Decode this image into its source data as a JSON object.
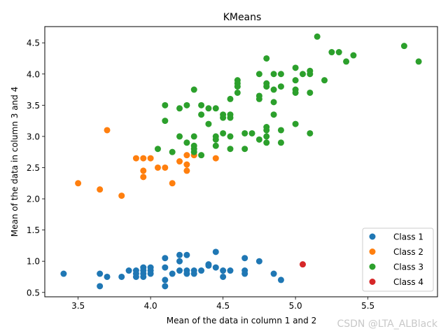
{
  "chart_data": {
    "type": "scatter",
    "title": "KMeans",
    "xlabel": "Mean of the data in column 1 and 2",
    "ylabel": "Mean of the data in column 3 and 4",
    "xlim": [
      3.27,
      5.98
    ],
    "ylim": [
      0.43,
      4.76
    ],
    "xticks": [
      3.5,
      4.0,
      4.5,
      5.0,
      5.5
    ],
    "xtick_labels": [
      "3.5",
      "4.0",
      "4.5",
      "5.0",
      "5.5"
    ],
    "yticks": [
      0.5,
      1.0,
      1.5,
      2.0,
      2.5,
      3.0,
      3.5,
      4.0,
      4.5
    ],
    "ytick_labels": [
      "0.5",
      "1.0",
      "1.5",
      "2.0",
      "2.5",
      "3.0",
      "3.5",
      "4.0",
      "4.5"
    ],
    "grid": false,
    "legend_position": "lower-right",
    "series": [
      {
        "name": "Class 1",
        "color": "#1f77b4",
        "points": [
          [
            3.4,
            0.8
          ],
          [
            3.65,
            0.8
          ],
          [
            3.65,
            0.6
          ],
          [
            3.7,
            0.75
          ],
          [
            3.8,
            0.75
          ],
          [
            3.85,
            0.85
          ],
          [
            3.9,
            0.85
          ],
          [
            3.9,
            0.8
          ],
          [
            3.9,
            0.75
          ],
          [
            3.95,
            0.9
          ],
          [
            3.95,
            0.85
          ],
          [
            3.95,
            0.8
          ],
          [
            3.95,
            0.75
          ],
          [
            4.0,
            0.9
          ],
          [
            4.0,
            0.85
          ],
          [
            4.0,
            0.8
          ],
          [
            4.1,
            1.05
          ],
          [
            4.1,
            0.9
          ],
          [
            4.1,
            0.7
          ],
          [
            4.1,
            0.6
          ],
          [
            4.15,
            0.8
          ],
          [
            4.2,
            1.1
          ],
          [
            4.2,
            1.0
          ],
          [
            4.2,
            0.85
          ],
          [
            4.25,
            1.1
          ],
          [
            4.25,
            0.85
          ],
          [
            4.25,
            0.8
          ],
          [
            4.3,
            0.85
          ],
          [
            4.3,
            0.8
          ],
          [
            4.35,
            0.85
          ],
          [
            4.4,
            0.95
          ],
          [
            4.4,
            0.93
          ],
          [
            4.45,
            1.15
          ],
          [
            4.45,
            0.9
          ],
          [
            4.5,
            0.85
          ],
          [
            4.5,
            0.75
          ],
          [
            4.55,
            0.85
          ],
          [
            4.65,
            1.05
          ],
          [
            4.65,
            0.85
          ],
          [
            4.65,
            0.8
          ],
          [
            4.75,
            1.0
          ],
          [
            4.85,
            0.8
          ],
          [
            4.9,
            0.7
          ]
        ]
      },
      {
        "name": "Class 2",
        "color": "#ff7f0e",
        "points": [
          [
            3.5,
            2.25
          ],
          [
            3.65,
            2.15
          ],
          [
            3.7,
            3.1
          ],
          [
            3.8,
            2.05
          ],
          [
            3.9,
            2.65
          ],
          [
            3.95,
            2.65
          ],
          [
            3.95,
            2.45
          ],
          [
            3.95,
            2.35
          ],
          [
            4.0,
            2.65
          ],
          [
            4.05,
            2.5
          ],
          [
            4.1,
            2.5
          ],
          [
            4.15,
            2.25
          ],
          [
            4.2,
            2.6
          ],
          [
            4.25,
            2.7
          ],
          [
            4.25,
            2.55
          ],
          [
            4.25,
            2.45
          ],
          [
            4.3,
            2.7
          ],
          [
            4.45,
            2.65
          ]
        ]
      },
      {
        "name": "Class 3",
        "color": "#2ca02c",
        "points": [
          [
            4.05,
            2.8
          ],
          [
            4.1,
            3.5
          ],
          [
            4.1,
            3.25
          ],
          [
            4.15,
            2.75
          ],
          [
            4.2,
            3.45
          ],
          [
            4.2,
            3.0
          ],
          [
            4.25,
            3.5
          ],
          [
            4.25,
            2.9
          ],
          [
            4.3,
            3.75
          ],
          [
            4.3,
            3.0
          ],
          [
            4.3,
            2.85
          ],
          [
            4.3,
            2.8
          ],
          [
            4.3,
            2.75
          ],
          [
            4.35,
            3.5
          ],
          [
            4.35,
            3.35
          ],
          [
            4.35,
            2.7
          ],
          [
            4.4,
            3.45
          ],
          [
            4.4,
            3.2
          ],
          [
            4.45,
            3.45
          ],
          [
            4.45,
            3.0
          ],
          [
            4.45,
            2.95
          ],
          [
            4.45,
            2.85
          ],
          [
            4.5,
            3.35
          ],
          [
            4.5,
            3.3
          ],
          [
            4.5,
            3.05
          ],
          [
            4.55,
            3.6
          ],
          [
            4.55,
            3.35
          ],
          [
            4.55,
            3.3
          ],
          [
            4.55,
            3.0
          ],
          [
            4.55,
            2.8
          ],
          [
            4.6,
            3.9
          ],
          [
            4.6,
            3.85
          ],
          [
            4.6,
            3.8
          ],
          [
            4.6,
            3.7
          ],
          [
            4.65,
            3.05
          ],
          [
            4.65,
            2.8
          ],
          [
            4.7,
            3.05
          ],
          [
            4.75,
            4.0
          ],
          [
            4.75,
            3.65
          ],
          [
            4.75,
            3.6
          ],
          [
            4.75,
            2.95
          ],
          [
            4.8,
            4.25
          ],
          [
            4.8,
            3.85
          ],
          [
            4.8,
            3.8
          ],
          [
            4.8,
            3.15
          ],
          [
            4.8,
            3.1
          ],
          [
            4.8,
            3.0
          ],
          [
            4.8,
            2.9
          ],
          [
            4.85,
            4.0
          ],
          [
            4.85,
            3.75
          ],
          [
            4.85,
            3.55
          ],
          [
            4.85,
            3.35
          ],
          [
            4.9,
            4.0
          ],
          [
            4.9,
            3.8
          ],
          [
            4.9,
            3.1
          ],
          [
            4.9,
            2.9
          ],
          [
            5.0,
            4.1
          ],
          [
            5.0,
            3.9
          ],
          [
            5.0,
            3.75
          ],
          [
            5.0,
            3.7
          ],
          [
            5.0,
            3.2
          ],
          [
            5.05,
            4.0
          ],
          [
            5.1,
            4.05
          ],
          [
            5.1,
            4.0
          ],
          [
            5.1,
            3.7
          ],
          [
            5.1,
            3.05
          ],
          [
            5.15,
            4.6
          ],
          [
            5.2,
            3.9
          ],
          [
            5.25,
            4.35
          ],
          [
            5.3,
            4.35
          ],
          [
            5.35,
            4.2
          ],
          [
            5.4,
            4.3
          ],
          [
            5.75,
            4.45
          ],
          [
            5.85,
            4.2
          ]
        ]
      },
      {
        "name": "Class 4",
        "color": "#d62728",
        "points": [
          [
            5.05,
            0.95
          ]
        ]
      }
    ]
  },
  "watermark": "CSDN @LTA_ALBlack"
}
